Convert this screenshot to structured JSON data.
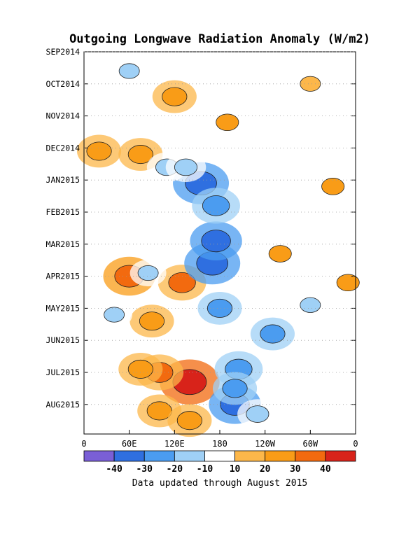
{
  "chart_data": {
    "type": "heatmap",
    "title": "Outgoing Longwave Radiation Anomaly (W/m2)",
    "note": "Data updated through August 2015",
    "y_ticks": [
      "SEP2014",
      "OCT2014",
      "NOV2014",
      "DEC2014",
      "JAN2015",
      "FEB2015",
      "MAR2015",
      "APR2015",
      "MAY2015",
      "JUN2015",
      "JUL2015",
      "AUG2015"
    ],
    "x_ticks": [
      "0",
      "60E",
      "120E",
      "180",
      "120W",
      "60W",
      "0"
    ],
    "x_values_deg_east": [
      0,
      60,
      120,
      180,
      240,
      300,
      360
    ],
    "colorbar": {
      "labels": [
        "-40",
        "-30",
        "-20",
        "-10",
        "10",
        "20",
        "30",
        "40"
      ],
      "levels": [
        -40,
        -30,
        -20,
        -10,
        10,
        20,
        30,
        40
      ],
      "colors": [
        "#7a5fd6",
        "#2f6fe0",
        "#4b9cf0",
        "#9fd0f6",
        "#ffffff",
        "#fcb74a",
        "#f99c17",
        "#f26a0f",
        "#d8231a"
      ]
    },
    "anomalies": [
      {
        "lon": 60,
        "time": 7.0,
        "value": 35
      },
      {
        "lon": 140,
        "time": 10.3,
        "value": 45
      },
      {
        "lon": 130,
        "time": 7.2,
        "value": 30
      },
      {
        "lon": 100,
        "time": 10.0,
        "value": 30
      },
      {
        "lon": 20,
        "time": 3.1,
        "value": 25
      },
      {
        "lon": 75,
        "time": 3.2,
        "value": 25
      },
      {
        "lon": 90,
        "time": 8.4,
        "value": 25
      },
      {
        "lon": 190,
        "time": 2.2,
        "value": 20
      },
      {
        "lon": 100,
        "time": 11.2,
        "value": 25
      },
      {
        "lon": 140,
        "time": 11.5,
        "value": 25
      },
      {
        "lon": 120,
        "time": 1.4,
        "value": 25
      },
      {
        "lon": 170,
        "time": 6.6,
        "value": -40
      },
      {
        "lon": 175,
        "time": 5.9,
        "value": -35
      },
      {
        "lon": 155,
        "time": 4.1,
        "value": -40
      },
      {
        "lon": 175,
        "time": 4.8,
        "value": -30
      },
      {
        "lon": 205,
        "time": 9.9,
        "value": -30
      },
      {
        "lon": 200,
        "time": 11.0,
        "value": -35
      },
      {
        "lon": 250,
        "time": 8.8,
        "value": -25
      },
      {
        "lon": 180,
        "time": 8.0,
        "value": -25
      },
      {
        "lon": 200,
        "time": 10.5,
        "value": -25
      },
      {
        "lon": 230,
        "time": 11.3,
        "value": -20
      },
      {
        "lon": 110,
        "time": 3.6,
        "value": -20
      },
      {
        "lon": 135,
        "time": 3.6,
        "value": -20
      },
      {
        "lon": 60,
        "time": 0.6,
        "value": -15
      },
      {
        "lon": 85,
        "time": 6.9,
        "value": -15
      },
      {
        "lon": 40,
        "time": 8.2,
        "value": -15
      },
      {
        "lon": 350,
        "time": 7.2,
        "value": 20
      },
      {
        "lon": 300,
        "time": 7.9,
        "value": -15
      },
      {
        "lon": 330,
        "time": 4.2,
        "value": 20
      },
      {
        "lon": 260,
        "time": 6.3,
        "value": 20
      },
      {
        "lon": 300,
        "time": 1.0,
        "value": 15
      },
      {
        "lon": 75,
        "time": 9.9,
        "value": 25
      }
    ]
  }
}
